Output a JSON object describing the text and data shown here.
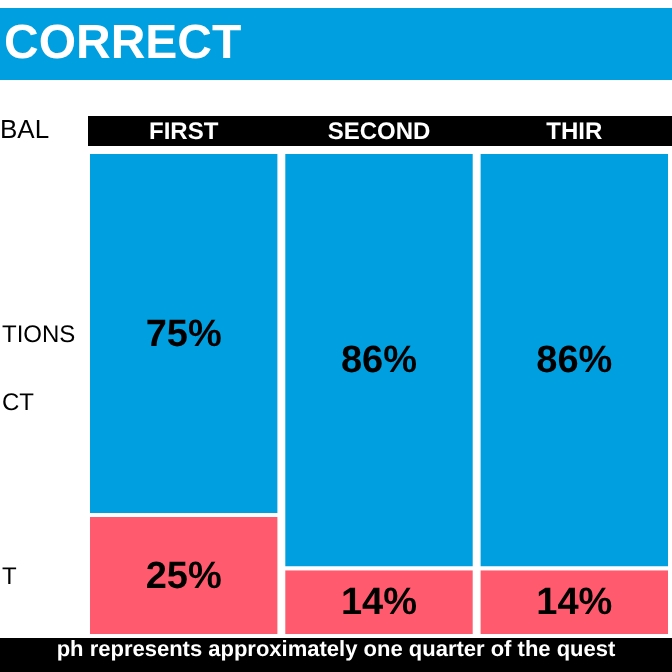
{
  "chart_data": {
    "type": "bar",
    "stacked": true,
    "legend": "left",
    "title": "CORRECT",
    "legend_title": "BAL",
    "categories": [
      "FIRST",
      "SECOND",
      "THIR"
    ],
    "series": [
      {
        "name": "T",
        "color": "#ff5a6e",
        "values": [
          25,
          14,
          14
        ],
        "value_labels": [
          "25%",
          "14%",
          "14%"
        ]
      },
      {
        "name": "TIONS\nCT",
        "color": "#009fdf",
        "values": [
          75,
          86,
          86
        ],
        "value_labels": [
          "75%",
          "86%",
          "86%"
        ]
      }
    ],
    "annotations": [
      "ph represents approximately one quarter of the quest"
    ]
  }
}
